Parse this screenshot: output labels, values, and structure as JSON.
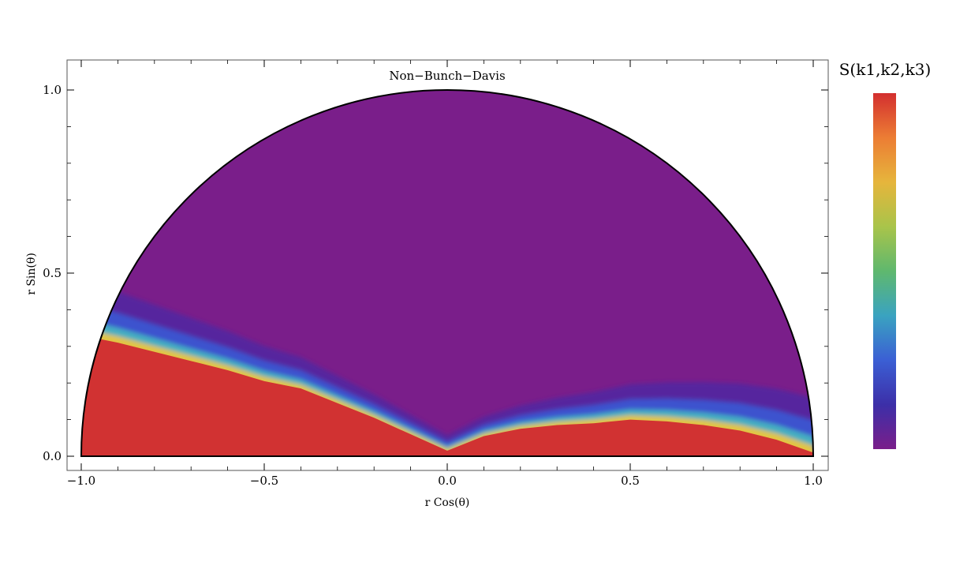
{
  "chart_data": {
    "type": "heatmap",
    "title": "Non−Bunch−Davis",
    "xlabel": "r Cos(θ)",
    "ylabel": "r Sin(θ)",
    "xlim": [
      -1.05,
      1.05
    ],
    "ylim": [
      -0.04,
      1.08
    ],
    "x_ticks": [
      "−1.0",
      "−0.5",
      "0.0",
      "0.5",
      "1.0"
    ],
    "x_tick_values": [
      -1.0,
      -0.5,
      0.0,
      0.5,
      1.0
    ],
    "y_ticks": [
      "0.0",
      "0.5",
      "1.0"
    ],
    "y_tick_values": [
      0.0,
      0.5,
      1.0
    ],
    "region": "upper half unit disk",
    "colorbar": {
      "label": "S(k1,k2,k3)",
      "colors": [
        "#7a1e8a",
        "#3c2fa8",
        "#3b5fd4",
        "#3aa3c0",
        "#5fb86e",
        "#a9c44a",
        "#e6b53c",
        "#ec7d34",
        "#d32f2f"
      ]
    },
    "colors": {
      "high": "#d13232",
      "low": "#7a1e8a",
      "mid_blue": "#3b56d4",
      "mid_cyan": "#46b4c0",
      "mid_yellow": "#e2c542"
    },
    "saturated_boundary": [
      [
        -1.0,
        0.33
      ],
      [
        -0.9,
        0.31
      ],
      [
        -0.8,
        0.285
      ],
      [
        -0.7,
        0.26
      ],
      [
        -0.6,
        0.235
      ],
      [
        -0.5,
        0.205
      ],
      [
        -0.4,
        0.185
      ],
      [
        -0.3,
        0.145
      ],
      [
        -0.2,
        0.105
      ],
      [
        -0.1,
        0.06
      ],
      [
        0.0,
        0.015
      ],
      [
        0.1,
        0.055
      ],
      [
        0.2,
        0.075
      ],
      [
        0.3,
        0.085
      ],
      [
        0.4,
        0.09
      ],
      [
        0.5,
        0.1
      ],
      [
        0.6,
        0.095
      ],
      [
        0.7,
        0.085
      ],
      [
        0.8,
        0.07
      ],
      [
        0.9,
        0.045
      ],
      [
        1.0,
        0.01
      ]
    ]
  }
}
